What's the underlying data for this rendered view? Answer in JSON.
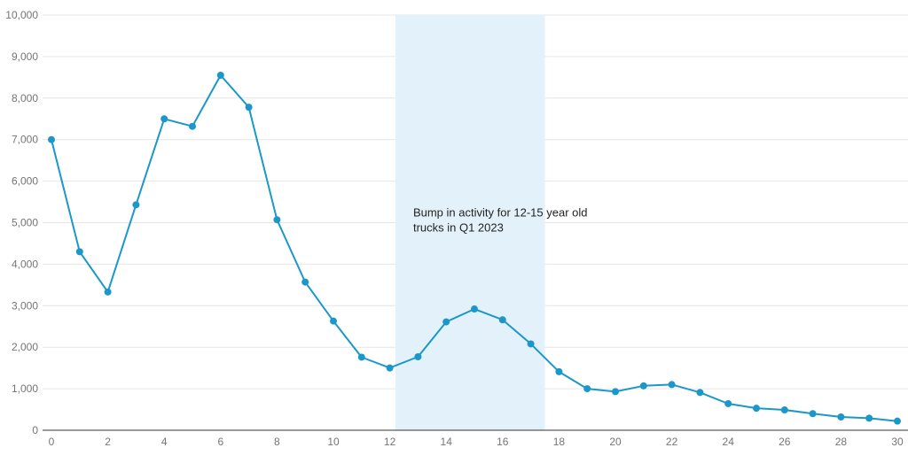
{
  "chart_data": {
    "type": "line",
    "title": "",
    "xlabel": "",
    "ylabel": "",
    "xlim": [
      0,
      30
    ],
    "ylim": [
      0,
      10000
    ],
    "x_ticks": [
      0,
      2,
      4,
      6,
      8,
      10,
      12,
      14,
      16,
      18,
      20,
      22,
      24,
      26,
      28,
      30
    ],
    "x_tick_labels": [
      "0",
      "2",
      "4",
      "6",
      "8",
      "10",
      "12",
      "14",
      "16",
      "18",
      "20",
      "22",
      "24",
      "26",
      "28",
      "30"
    ],
    "y_ticks": [
      0,
      1000,
      2000,
      3000,
      4000,
      5000,
      6000,
      7000,
      8000,
      9000,
      10000
    ],
    "y_tick_labels": [
      "0",
      "1,000",
      "2,000",
      "3,000",
      "4,000",
      "5,000",
      "6,000",
      "7,000",
      "8,000",
      "9,000",
      "10,000"
    ],
    "grid": "horizontal",
    "series": [
      {
        "x": [
          0,
          1,
          2,
          3,
          4,
          5,
          6,
          7,
          8,
          9,
          10,
          11,
          12,
          13,
          14,
          15,
          16,
          17,
          18,
          19,
          20,
          21,
          22,
          23,
          24,
          25,
          26,
          27,
          28,
          29,
          30
        ],
        "values": [
          7000,
          4300,
          3330,
          5430,
          7500,
          7320,
          8550,
          7780,
          5070,
          3570,
          2630,
          1760,
          1500,
          1770,
          2610,
          2920,
          2660,
          2080,
          1410,
          1000,
          930,
          1070,
          1100,
          910,
          640,
          530,
          490,
          400,
          320,
          290,
          220
        ]
      }
    ],
    "highlight_band": {
      "x_start": 12.2,
      "x_end": 17.5
    },
    "annotation": {
      "line1": "Bump in activity for 12-15 year old",
      "line2": "trucks in Q1 2023"
    },
    "colors": {
      "line": "#1b98c9",
      "point": "#1b98c9",
      "band": "#e3f1fa",
      "grid": "#e6e6e6",
      "axis": "#333333"
    }
  }
}
